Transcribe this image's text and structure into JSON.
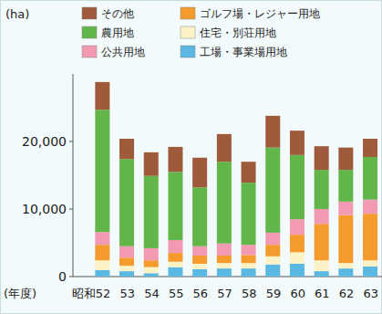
{
  "chart_data": {
    "type": "bar",
    "stacked": true,
    "y_label": "(ha)",
    "x_label": "(年度)",
    "categories": [
      "昭和52",
      "53",
      "54",
      "55",
      "56",
      "57",
      "58",
      "59",
      "60",
      "61",
      "62",
      "63"
    ],
    "ylim": [
      0,
      30000
    ],
    "yticks": [
      0,
      {
        "value": 10000,
        "label": "10,000"
      },
      {
        "value": 20000,
        "label": "20,000"
      }
    ],
    "grid": false,
    "legend": "top",
    "series": [
      {
        "name": "工場・事業場用地",
        "color": "#5ab8e2",
        "values": [
          950,
          800,
          500,
          1400,
          1100,
          1200,
          1200,
          1800,
          1900,
          800,
          1200,
          1500
        ]
      },
      {
        "name": "住宅・別荘用地",
        "color": "#fbf3c6",
        "values": [
          1450,
          800,
          900,
          800,
          800,
          800,
          800,
          1200,
          1700,
          1600,
          800,
          900
        ]
      },
      {
        "name": "ゴルフ場・レジャー用地",
        "color": "#f59a2c",
        "values": [
          2300,
          1200,
          1000,
          1300,
          1200,
          1100,
          1200,
          1700,
          2600,
          5400,
          7100,
          6900
        ]
      },
      {
        "name": "公共用地",
        "color": "#f29ab2",
        "values": [
          1900,
          1700,
          1800,
          1900,
          1400,
          1800,
          1500,
          1800,
          2300,
          2200,
          2000,
          2100
        ]
      },
      {
        "name": "農用地",
        "color": "#62b548",
        "values": [
          18100,
          12900,
          10700,
          10100,
          8700,
          12100,
          9200,
          12600,
          9500,
          5800,
          4700,
          6300
        ]
      },
      {
        "name": "その他",
        "color": "#9e5a3a",
        "values": [
          4100,
          3000,
          3500,
          3700,
          4400,
          4100,
          3100,
          4700,
          3600,
          3500,
          3300,
          2700
        ]
      }
    ]
  }
}
